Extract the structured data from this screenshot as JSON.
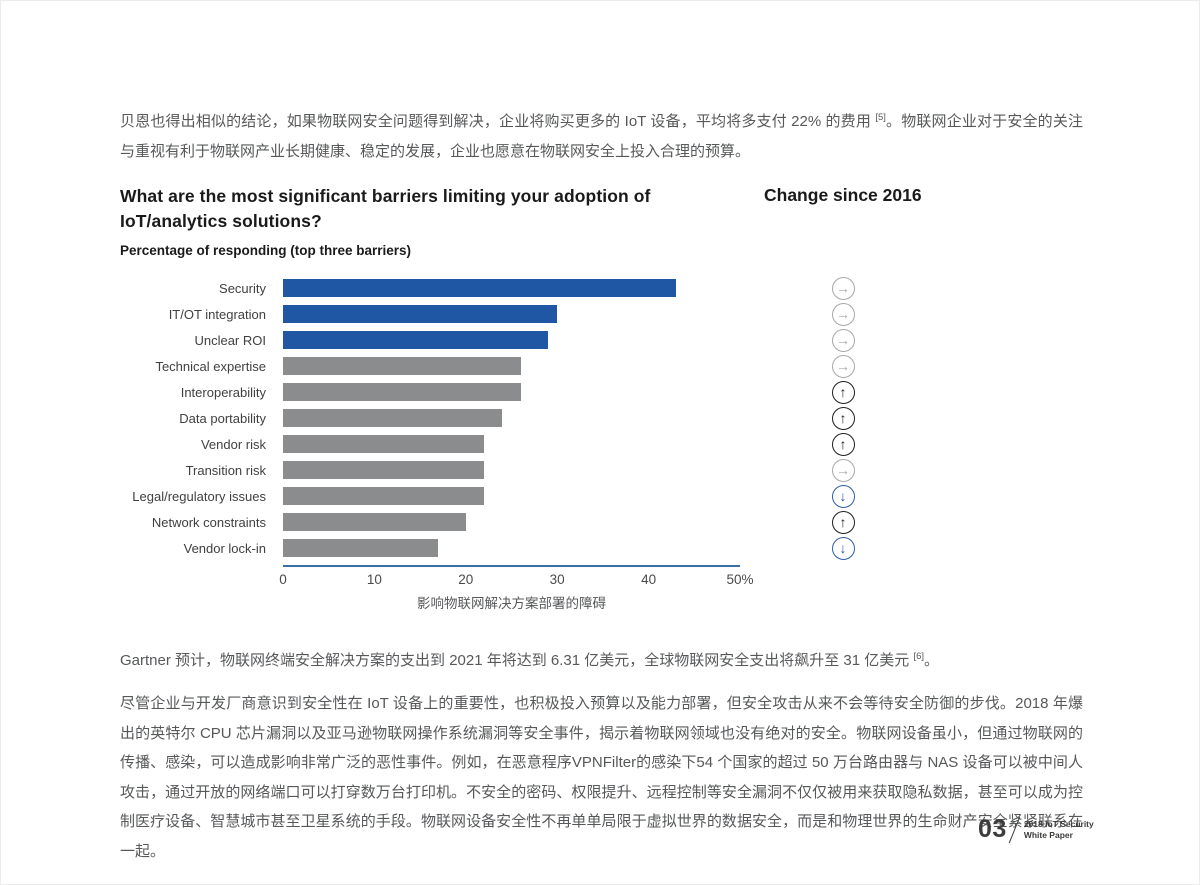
{
  "page": {
    "intro_paragraph": {
      "part1": "贝恩也得出相似的结论，如果物联网安全问题得到解决，企业将购买更多的 IoT 设备，平均将多支付 22% 的费用 ",
      "footnote": "[5]",
      "part2": "。物联网企业对于安全的关注与重视有利于物联网产业长期健康、稳定的发展，企业也愿意在物联网安全上投入合理的预算。"
    },
    "gartner_paragraph": {
      "part1": "Gartner 预计，物联网终端安全解决方案的支出到 2021 年将达到 6.31 亿美元，全球物联网安全支出将飙升至 31 亿美元 ",
      "footnote": "[6]",
      "part2": "。"
    },
    "security_paragraph": "尽管企业与开发厂商意识到安全性在 IoT 设备上的重要性，也积极投入预算以及能力部署，但安全攻击从来不会等待安全防御的步伐。2018 年爆出的英特尔 CPU 芯片漏洞以及亚马逊物联网操作系统漏洞等安全事件，揭示着物联网领域也没有绝对的安全。物联网设备虽小，但通过物联网的传播、感染，可以造成影响非常广泛的恶性事件。例如，在恶意程序VPNFilter的感染下54 个国家的超过 50 万台路由器与 NAS 设备可以被中间人攻击，通过开放的网络端口可以打穿数万台打印机。不安全的密码、权限提升、远程控制等安全漏洞不仅仅被用来获取隐私数据，甚至可以成为控制医疗设备、智慧城市甚至卫星系统的手段。物联网设备安全性不再单单局限于虚拟世界的数据安全，而是和物理世界的生命财产安全紧紧联系在一起。",
    "footer": {
      "page_number": "03",
      "line1": "2018 IoT Security",
      "line2": "White Paper"
    }
  },
  "chart_data": {
    "type": "bar",
    "orientation": "horizontal",
    "title": "What are the most significant barriers limiting your adoption of IoT/analytics solutions?",
    "change_column_title": "Change since 2016",
    "subtitle": "Percentage of responding (top three barriers)",
    "categories": [
      "Security",
      "IT/OT integration",
      "Unclear ROI",
      "Technical expertise",
      "Interoperability",
      "Data portability",
      "Vendor risk",
      "Transition risk",
      "Legal/regulatory issues",
      "Network constraints",
      "Vendor lock-in"
    ],
    "values": [
      43,
      30,
      29,
      26,
      26,
      24,
      22,
      22,
      22,
      20,
      17
    ],
    "change_since_2016": [
      "right",
      "right",
      "right",
      "right",
      "up",
      "up",
      "up",
      "right",
      "down",
      "up",
      "down"
    ],
    "x_ticks": [
      "0",
      "10",
      "20",
      "30",
      "40",
      "50%"
    ],
    "xlim": [
      0,
      50
    ],
    "grid": false,
    "axis_caption": "影响物联网解决方案部署的障碍",
    "colors": {
      "highlight_bar": "#1f57a4",
      "default_bar": "#8a8c8e",
      "axis_line": "#3c6ea5",
      "arrow_right": "#a6a8ab",
      "arrow_up": "#1e1e1e",
      "arrow_down": "#2d5ca8"
    },
    "highlight_count": 3
  }
}
